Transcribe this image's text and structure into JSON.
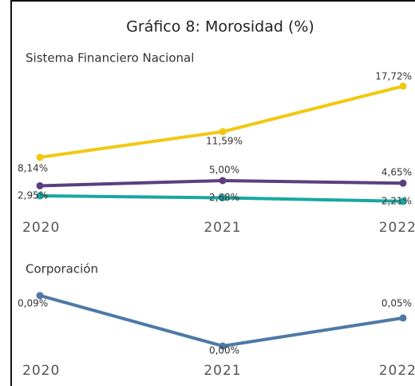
{
  "title": "Gráfico 8: Morosidad (%)",
  "chart_data": [
    {
      "type": "line",
      "subtitle": "Sistema Financiero Nacional",
      "categories": [
        "2020",
        "2021",
        "2022"
      ],
      "ylim": [
        0.8,
        19.1
      ],
      "series": [
        {
          "color": "#f2c80f",
          "values": [
            8.14,
            11.59,
            17.72
          ],
          "value_labels": [
            "8,14%",
            "11,59%",
            "17,72%"
          ]
        },
        {
          "color": "#5b3f7f",
          "values": [
            4.3,
            5.0,
            4.65
          ],
          "value_labels": [
            null,
            "5,00%",
            "4,65%"
          ]
        },
        {
          "color": "#18a7a3",
          "values": [
            2.95,
            2.68,
            2.21
          ],
          "value_labels": [
            "2,95%",
            "2,68%",
            "2,21%"
          ]
        }
      ]
    },
    {
      "type": "line",
      "subtitle": "Corporación",
      "categories": [
        "2020",
        "2021",
        "2022"
      ],
      "ylim": [
        -0.01,
        0.104
      ],
      "series": [
        {
          "color": "#4e79a7",
          "values": [
            0.09,
            0.0,
            0.05
          ],
          "value_labels": [
            "0,09%",
            "0,00%",
            "0,05%"
          ]
        }
      ]
    }
  ]
}
